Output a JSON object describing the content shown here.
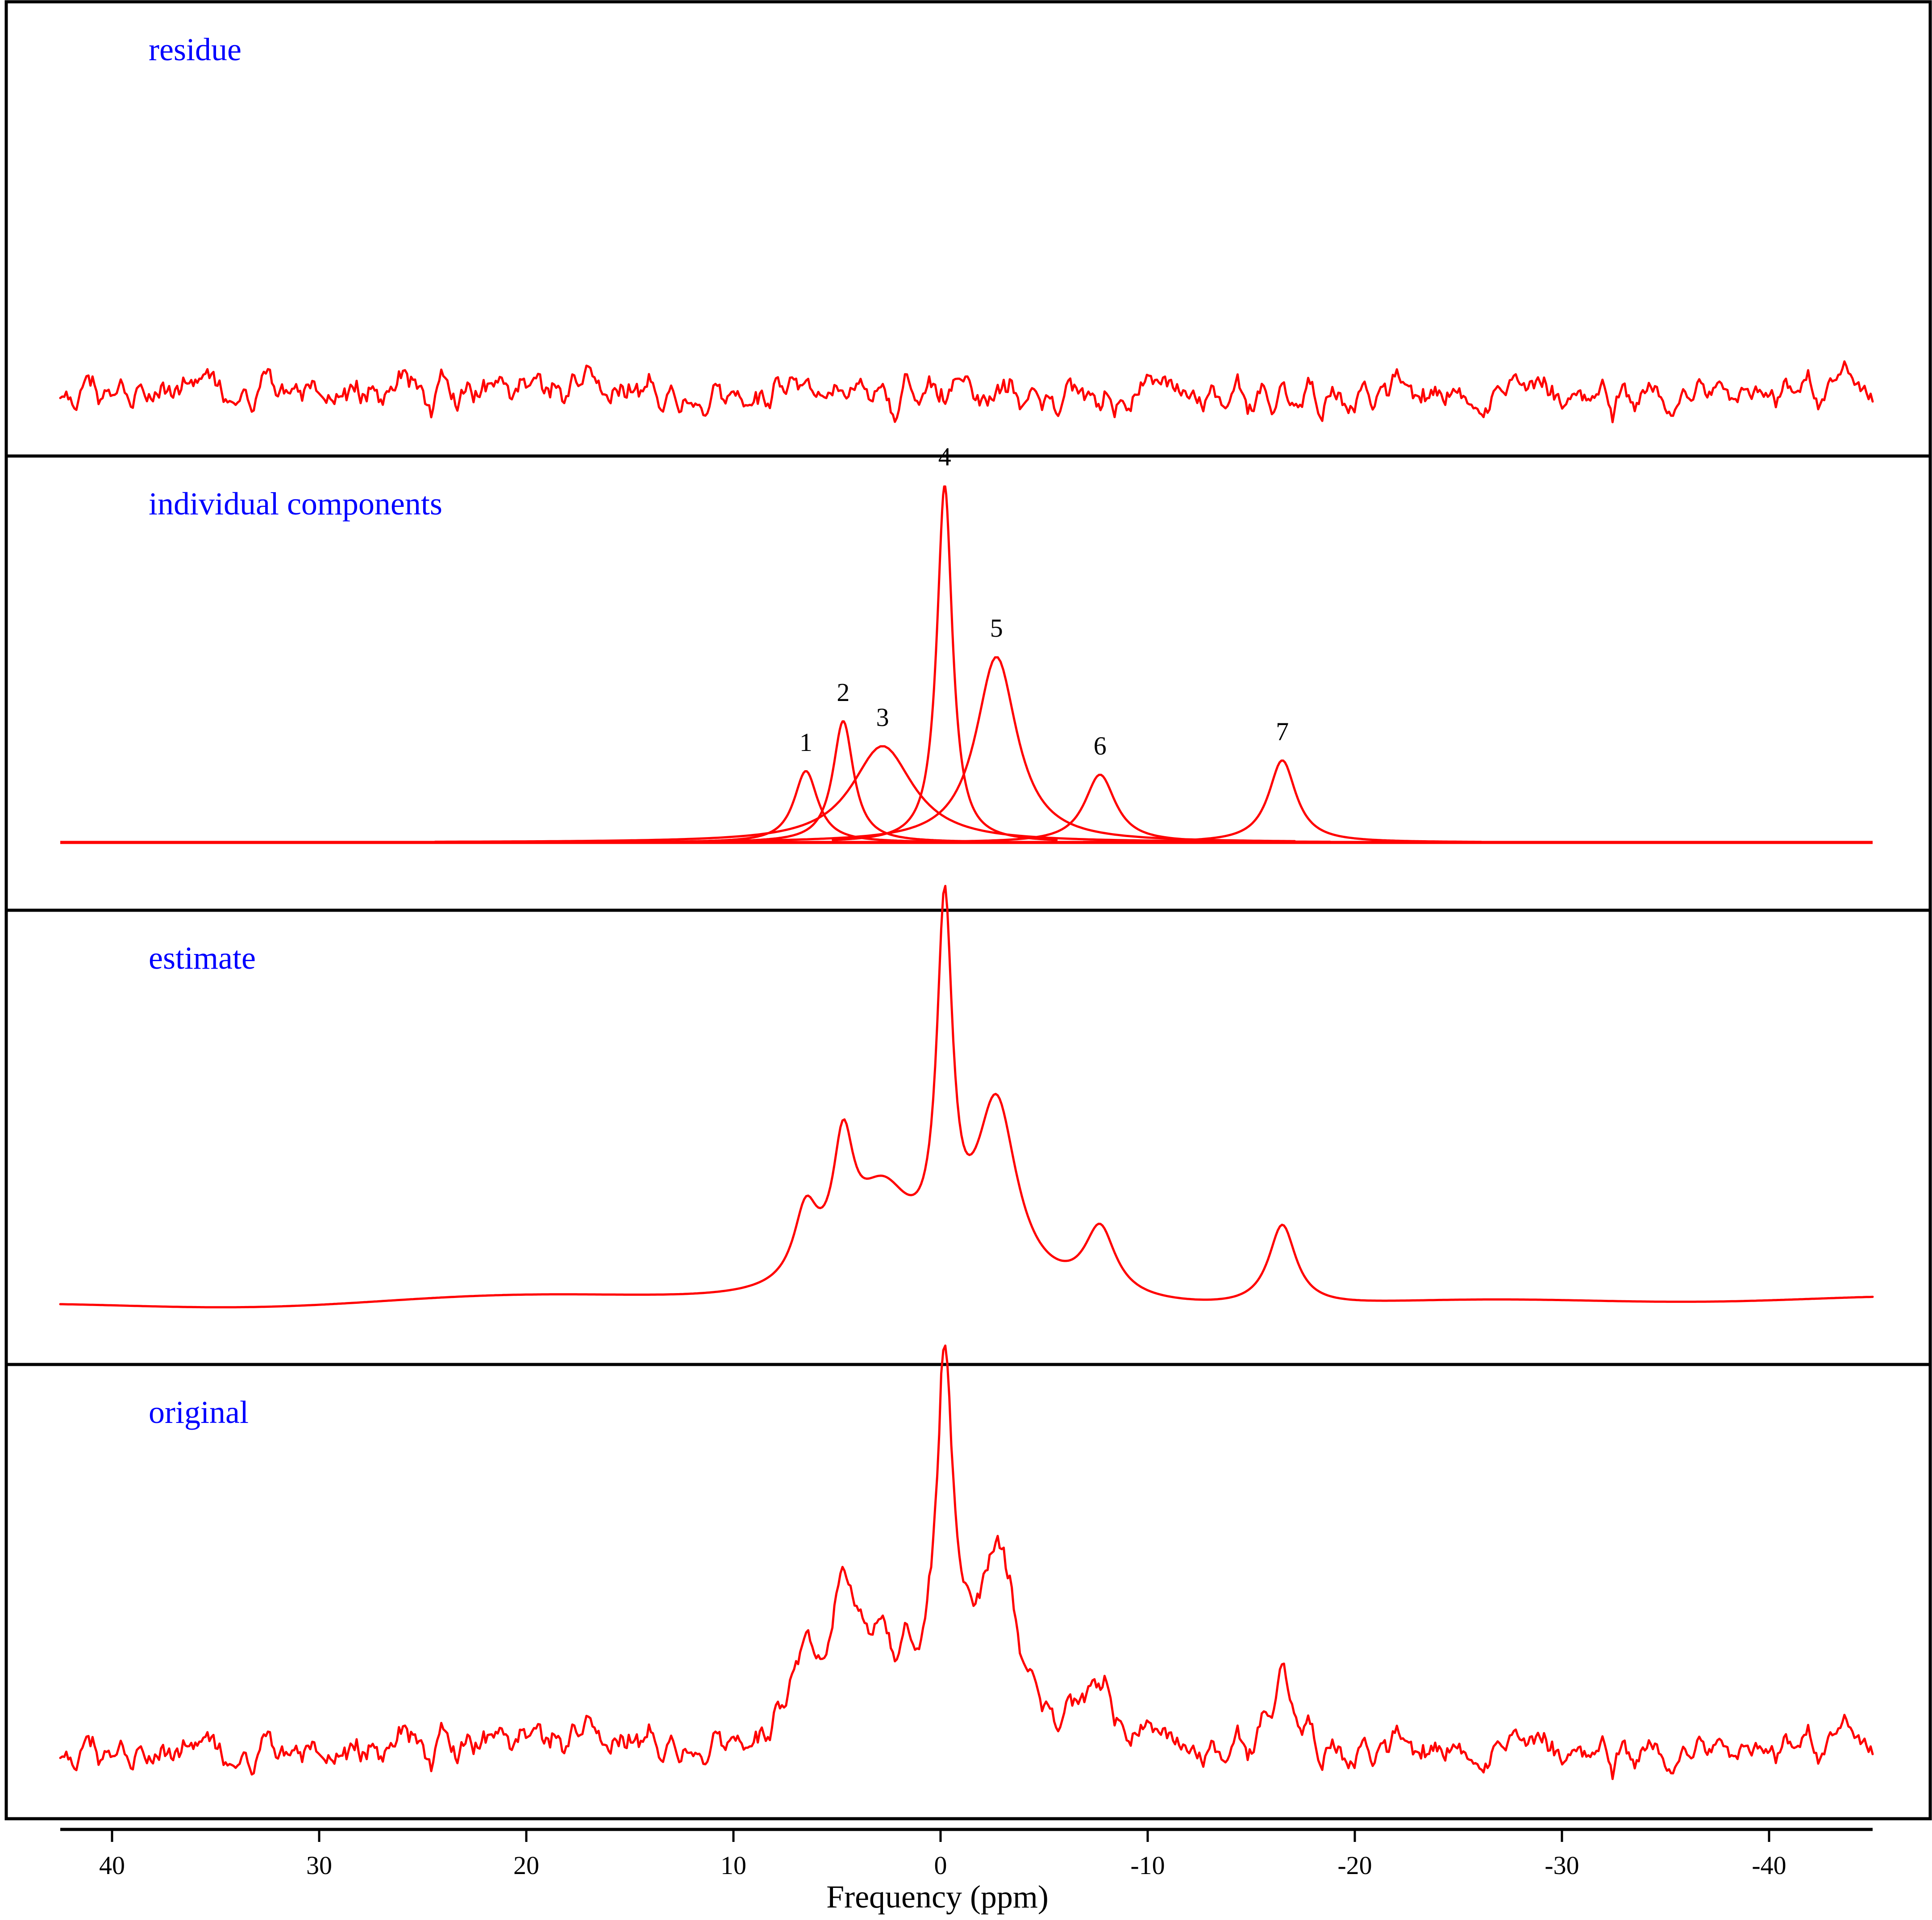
{
  "chart_data": {
    "type": "line",
    "xlabel": "Frequency (ppm)",
    "x_reversed": true,
    "xlim": [
      42.5,
      -45
    ],
    "xticks": [
      40,
      30,
      20,
      10,
      0,
      -10,
      -20,
      -30,
      -40
    ],
    "trace_color": "#ff0000",
    "label_color": "#0000ff",
    "peaks": [
      {
        "label": "1",
        "center": 6.5,
        "width": 0.7,
        "amplitude": 0.2
      },
      {
        "label": "2",
        "center": 4.7,
        "width": 0.6,
        "amplitude": 0.34
      },
      {
        "label": "3",
        "center": 2.8,
        "width": 1.8,
        "amplitude": 0.27
      },
      {
        "label": "4",
        "center": -0.2,
        "width": 0.45,
        "amplitude": 1.0
      },
      {
        "label": "5",
        "center": -2.7,
        "width": 1.2,
        "amplitude": 0.52
      },
      {
        "label": "6",
        "center": -7.7,
        "width": 0.9,
        "amplitude": 0.19
      },
      {
        "label": "7",
        "center": -16.5,
        "width": 0.8,
        "amplitude": 0.23
      }
    ],
    "panels": [
      {
        "label": "residue"
      },
      {
        "label": "individual components"
      },
      {
        "label": "estimate"
      },
      {
        "label": "original"
      }
    ]
  }
}
